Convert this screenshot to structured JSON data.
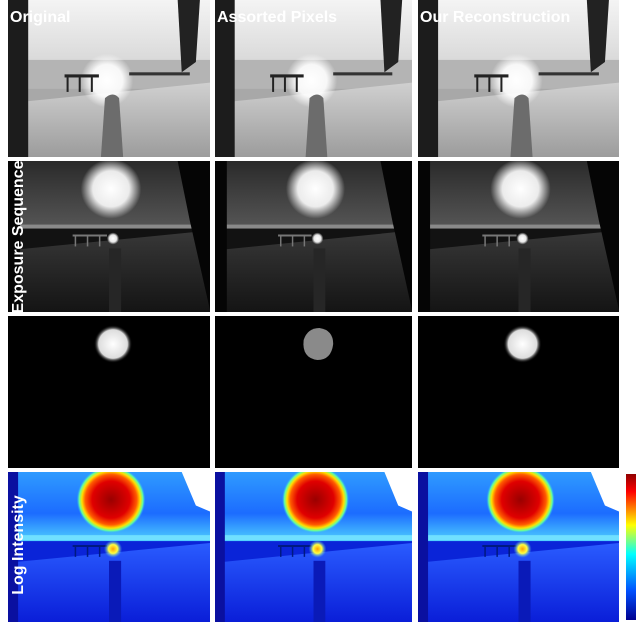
{
  "columns": [
    "Original",
    "Assorted Pixels",
    "Our Reconstruction"
  ],
  "row_labels": [
    "Exposure Sequence",
    "Log Intensity"
  ]
}
